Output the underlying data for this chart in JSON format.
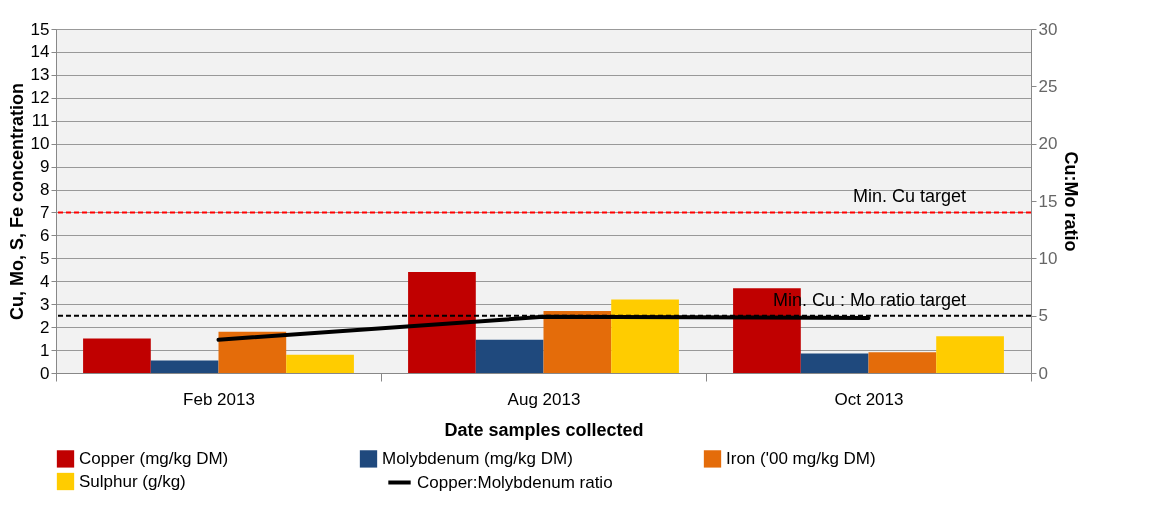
{
  "chart_data": {
    "type": "bar",
    "xlabel": "Date samples collected",
    "ylabel": "Cu, Mo, S, Fe concentration",
    "y2label": "Cu:Mo ratio",
    "categories": [
      "Feb 2013",
      "Aug 2013",
      "Oct 2013"
    ],
    "series": [
      {
        "name": "Copper (mg/kg DM)",
        "color": "#c00000",
        "values": [
          1.5,
          4.4,
          3.7
        ]
      },
      {
        "name": "Molybdenum (mg/kg DM)",
        "color": "#1f497d",
        "values": [
          0.55,
          1.45,
          0.85
        ]
      },
      {
        "name": "Iron ('00 mg/kg DM)",
        "color": "#e46c0a",
        "values": [
          1.8,
          2.7,
          0.9
        ]
      },
      {
        "name": "Sulphur (g/kg)",
        "color": "#ffcc00",
        "values": [
          0.8,
          3.2,
          1.6
        ]
      },
      {
        "name": "Copper:Molybdenum ratio",
        "color": "#000000",
        "type": "line",
        "axis": "y2",
        "values": [
          2.9,
          4.9,
          4.8
        ]
      }
    ],
    "ylim": [
      0,
      15
    ],
    "yticks": [
      0,
      1,
      2,
      3,
      4,
      5,
      6,
      7,
      8,
      9,
      10,
      11,
      12,
      13,
      14,
      15
    ],
    "y2lim": [
      0,
      30
    ],
    "y2ticks": [
      0,
      5,
      10,
      15,
      20,
      25,
      30
    ],
    "ref_lines": [
      {
        "axis": "y",
        "value": 7,
        "label": "Min. Cu target",
        "color": "#ff0000",
        "line_style": "dashed"
      },
      {
        "axis": "y2",
        "value": 5,
        "label": "Min. Cu : Mo ratio target",
        "color": "#000000",
        "line_style": "dashed"
      }
    ],
    "grid": "y",
    "legend": "bottom",
    "marker": "none"
  }
}
